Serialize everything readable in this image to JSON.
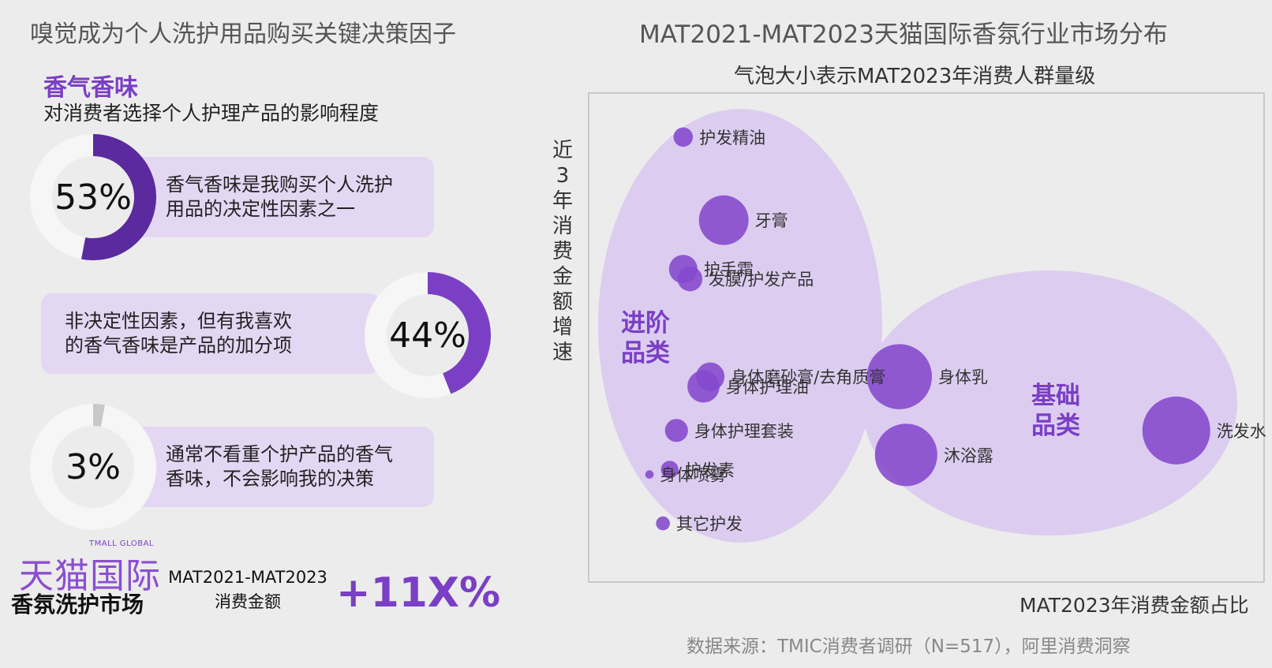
{
  "left": {
    "title": "嗅觉成为个人洗护用品购买关键决策因子",
    "aroma_title": "香气香味",
    "aroma_subtitle": "对消费者选择个人护理产品的影响程度",
    "items": [
      {
        "percent": "53%",
        "value": 0.53,
        "text_line1": "香气香味是我购买个人洗护",
        "text_line2": "用品的决定性因素之一"
      },
      {
        "percent": "44%",
        "value": 0.44,
        "text_line1": "非决定性因素，但有我喜欢",
        "text_line2": "的香气香味是产品的加分项"
      },
      {
        "percent": "3%",
        "value": 0.03,
        "text_line1": "通常不看重个护产品的香气",
        "text_line2": "香味，不会影响我的决策"
      }
    ],
    "colors": {
      "primary": "#5a2a9e",
      "secondary": "#7a3fc4",
      "muted": "#c8c8c8",
      "card": "#e4d7f3"
    }
  },
  "brand": {
    "logo_en": "TMALL GLOBAL",
    "logo_cn": "天猫国际",
    "market": "香氛洗护市场",
    "mat_range": "MAT2021-MAT2023",
    "mat_amount": "消费金额",
    "growth": "+11X%"
  },
  "right": {
    "title": "MAT2021-MAT2023天猫国际香氛行业市场分布",
    "subtitle": "气泡大小表示MAT2023年消费人群量级",
    "y_label": "近3年消费金额增速",
    "x_label": "MAT2023年消费金额占比",
    "source": "数据来源：TMIC消费者调研（N=517），阿里消费洞察"
  },
  "chart_data": {
    "type": "scatter",
    "title": "MAT2021-MAT2023天猫国际香氛行业市场分布",
    "subtitle": "气泡大小表示MAT2023年消费人群量级",
    "xlabel": "MAT2023年消费金额占比",
    "ylabel": "近3年消费金额增速",
    "axis_ticks": false,
    "groups": [
      {
        "name_line1": "进阶",
        "name_line2": "品类",
        "color": "#7a3fc4"
      },
      {
        "name_line1": "基础",
        "name_line2": "品类",
        "color": "#7a3fc4"
      }
    ],
    "points": [
      {
        "label": "护发精油",
        "x": 0.14,
        "y": 0.91,
        "size": 0.16,
        "group": 0
      },
      {
        "label": "牙膏",
        "x": 0.2,
        "y": 0.74,
        "size": 0.49,
        "group": 0
      },
      {
        "label": "护手霜",
        "x": 0.14,
        "y": 0.64,
        "size": 0.26,
        "group": 0
      },
      {
        "label": "发膜/护发产品",
        "x": 0.15,
        "y": 0.62,
        "size": 0.22,
        "group": 0
      },
      {
        "label": "身体磨砂膏/去角质膏",
        "x": 0.18,
        "y": 0.42,
        "size": 0.26,
        "group": 0
      },
      {
        "label": "身体护理油",
        "x": 0.17,
        "y": 0.4,
        "size": 0.3,
        "group": 0
      },
      {
        "label": "身体护理套装",
        "x": 0.13,
        "y": 0.31,
        "size": 0.2,
        "group": 0
      },
      {
        "label": "护发素",
        "x": 0.12,
        "y": 0.23,
        "size": 0.14,
        "group": 0
      },
      {
        "label": "身体喷雾",
        "x": 0.09,
        "y": 0.22,
        "size": 0.04,
        "group": 0
      },
      {
        "label": "其它护发",
        "x": 0.11,
        "y": 0.12,
        "size": 0.1,
        "group": 0
      },
      {
        "label": "身体乳",
        "x": 0.46,
        "y": 0.42,
        "size": 0.66,
        "group": 1
      },
      {
        "label": "沐浴露",
        "x": 0.47,
        "y": 0.26,
        "size": 0.63,
        "group": 1
      },
      {
        "label": "洗发水",
        "x": 0.87,
        "y": 0.31,
        "size": 0.69,
        "group": 1
      }
    ]
  }
}
